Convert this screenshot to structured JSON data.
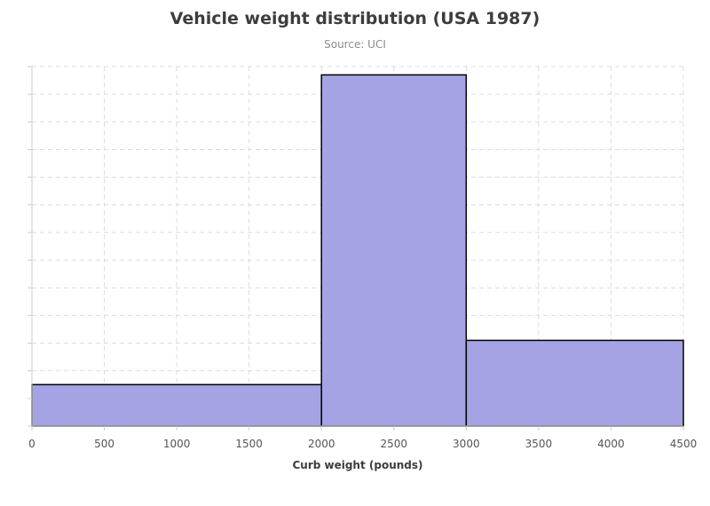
{
  "chart_data": {
    "type": "bar",
    "title": "Vehicle weight distribution (USA 1987)",
    "subtitle": "Source: UCI",
    "xlabel": "Curb weight (pounds)",
    "ylabel": "",
    "xlim": [
      0,
      4500
    ],
    "ylim": [
      0,
      130
    ],
    "x_ticks": [
      0,
      500,
      1000,
      1500,
      2000,
      2500,
      3000,
      3500,
      4000,
      4500
    ],
    "y_grid_step": 10,
    "grid": true,
    "legend": "none",
    "bins": [
      {
        "from": 0,
        "to": 2000,
        "value": 15
      },
      {
        "from": 2000,
        "to": 3000,
        "value": 127
      },
      {
        "from": 3000,
        "to": 4500,
        "value": 31
      }
    ],
    "colors": {
      "bar_fill": "#a5a3e3",
      "bar_stroke": "#000000",
      "grid": "#dcdcdc",
      "axis": "#cccccc"
    }
  }
}
